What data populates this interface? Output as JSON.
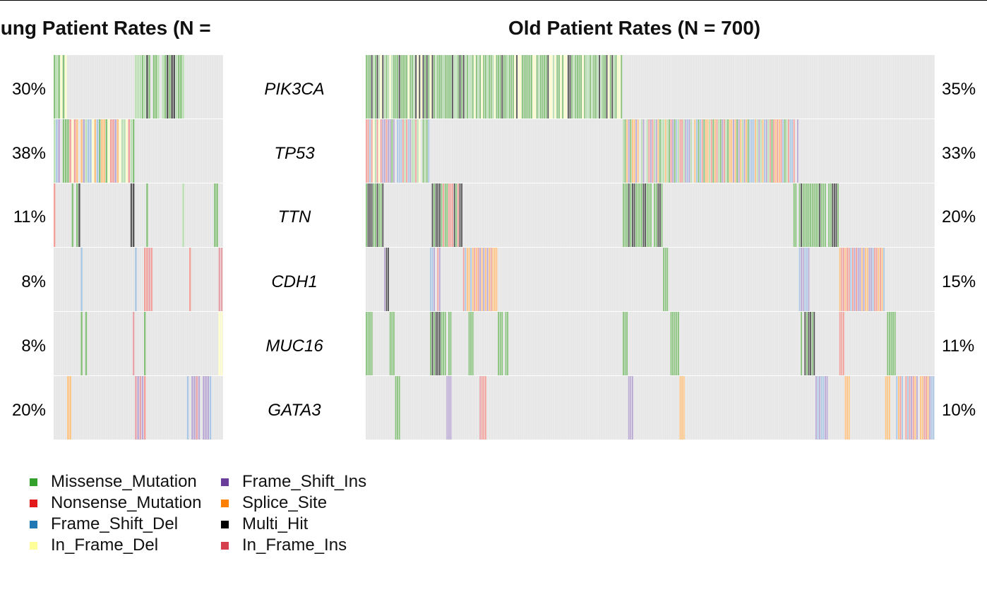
{
  "chart_data": [
    {
      "type": "heatmap",
      "title": "Young Patient Rates (N =",
      "rows": [
        "PIK3CA",
        "TP53",
        "TTN",
        "CDH1",
        "MUC16",
        "GATA3"
      ],
      "rate_labels": [
        "30%",
        "38%",
        "11%",
        "8%",
        "8%",
        "20%"
      ],
      "rates": [
        30,
        38,
        11,
        8,
        8,
        20
      ]
    },
    {
      "type": "heatmap",
      "title": "Old Patient Rates (N = 700)",
      "rows": [
        "PIK3CA",
        "TP53",
        "TTN",
        "CDH1",
        "MUC16",
        "GATA3"
      ],
      "rate_labels": [
        "35%",
        "33%",
        "20%",
        "15%",
        "11%",
        "10%"
      ],
      "rates": [
        35,
        33,
        20,
        15,
        11,
        10
      ]
    }
  ],
  "legend": {
    "items": [
      {
        "label": "Missense_Mutation",
        "color": "#33a02c"
      },
      {
        "label": "Nonsense_Mutation",
        "color": "#e31a1c"
      },
      {
        "label": "Frame_Shift_Del",
        "color": "#1f78b4"
      },
      {
        "label": "In_Frame_Del",
        "color": "#ffff99"
      },
      {
        "label": "Frame_Shift_Ins",
        "color": "#6a3d9a"
      },
      {
        "label": "Splice_Site",
        "color": "#ff7f00"
      },
      {
        "label": "Multi_Hit",
        "color": "#000000"
      },
      {
        "label": "In_Frame_Ins",
        "color": "#d6404e"
      }
    ]
  }
}
